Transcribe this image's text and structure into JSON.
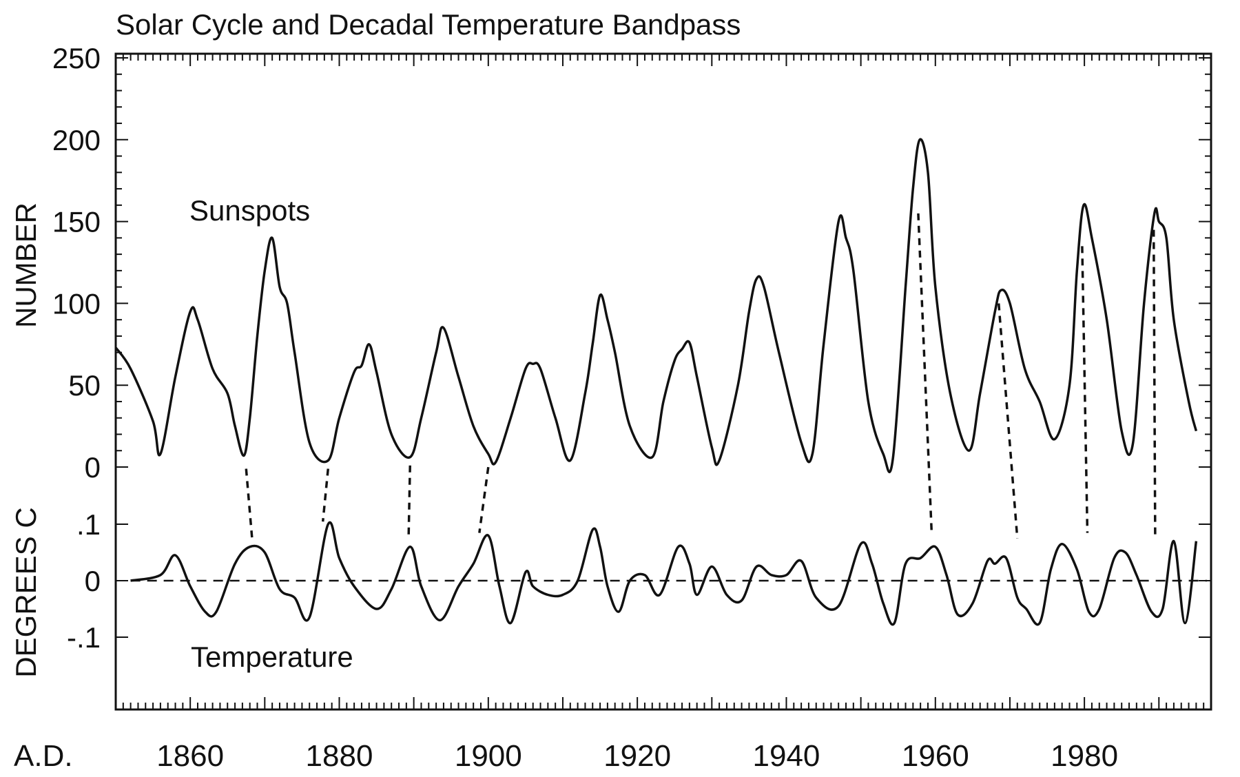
{
  "chart_data": [
    {
      "type": "line",
      "title": "Solar Cycle and Decadal Temperature Bandpass",
      "ylabel": "NUMBER",
      "xlabel": "A.D.",
      "xlim": [
        1850,
        1997
      ],
      "ylim": [
        0,
        250
      ],
      "x_ticks": [
        "1860",
        "1880",
        "1900",
        "1920",
        "1940",
        "1960",
        "1980"
      ],
      "y_ticks": [
        "0",
        "50",
        "100",
        "150",
        "200",
        "250"
      ],
      "grid": false,
      "series": [
        {
          "name": "Sunspots",
          "x": [
            1850,
            1852,
            1855,
            1856,
            1858,
            1860,
            1861,
            1863,
            1865,
            1866,
            1867.2,
            1868,
            1869,
            1870,
            1871,
            1872,
            1873,
            1874,
            1876,
            1878.5,
            1880,
            1882,
            1883,
            1884,
            1885,
            1887,
            1889.5,
            1891,
            1893,
            1894,
            1896,
            1898,
            1900,
            1901,
            1903,
            1905,
            1906,
            1907,
            1909,
            1911,
            1913,
            1914,
            1915,
            1916,
            1917,
            1919,
            1922,
            1923.5,
            1925,
            1926,
            1927,
            1928,
            1930,
            1931,
            1933.5,
            1935,
            1936,
            1937,
            1939,
            1942,
            1943.5,
            1945,
            1947,
            1948,
            1949,
            1951,
            1953,
            1954.3,
            1956,
            1957,
            1957.9,
            1959,
            1960,
            1962,
            1964.5,
            1966,
            1968,
            1968.8,
            1970,
            1972,
            1974,
            1976,
            1978,
            1979,
            1979.9,
            1981,
            1983,
            1985,
            1986.5,
            1988,
            1989.4,
            1990,
            1991,
            1992,
            1994,
            1995
          ],
          "values": [
            73,
            60,
            28,
            8,
            55,
            95,
            90,
            60,
            45,
            25,
            7,
            30,
            80,
            120,
            140,
            110,
            100,
            70,
            15,
            4,
            30,
            58,
            62,
            75,
            58,
            20,
            6,
            30,
            70,
            85,
            55,
            25,
            8,
            3,
            30,
            60,
            63,
            60,
            30,
            4,
            45,
            75,
            105,
            90,
            70,
            25,
            6,
            40,
            65,
            72,
            76,
            55,
            12,
            4,
            50,
            95,
            115,
            110,
            70,
            15,
            8,
            75,
            150,
            140,
            120,
            40,
            8,
            5,
            110,
            170,
            200,
            180,
            110,
            45,
            10,
            45,
            95,
            108,
            100,
            60,
            40,
            17,
            50,
            120,
            160,
            140,
            90,
            22,
            14,
            100,
            155,
            150,
            140,
            90,
            40,
            22
          ]
        },
        {
          "name": "Temperature",
          "x": [
            1852,
            1856,
            1858,
            1860,
            1862,
            1863.5,
            1866,
            1868,
            1870,
            1872,
            1874,
            1876,
            1878.5,
            1880,
            1882,
            1885,
            1887,
            1889.5,
            1891,
            1893.5,
            1896,
            1898,
            1900,
            1901.5,
            1903,
            1905,
            1906,
            1908,
            1910,
            1912,
            1914,
            1915,
            1916,
            1917.5,
            1919,
            1921,
            1923,
            1925.5,
            1927,
            1928,
            1930,
            1932,
            1934,
            1936,
            1938,
            1940,
            1942,
            1944,
            1947,
            1950,
            1951.5,
            1953,
            1954.5,
            1956,
            1958,
            1960,
            1961.5,
            1963,
            1965,
            1967,
            1968,
            1969.5,
            1971,
            1972.2,
            1974,
            1975.5,
            1977,
            1979,
            1980.6,
            1982,
            1984,
            1985.5,
            1987,
            1989,
            1990.5,
            1992,
            1993.5,
            1995
          ],
          "values": [
            0.0,
            0.01,
            0.045,
            -0.01,
            -0.055,
            -0.055,
            0.03,
            0.06,
            0.05,
            -0.015,
            -0.03,
            -0.065,
            0.1,
            0.04,
            -0.01,
            -0.05,
            -0.015,
            0.06,
            -0.01,
            -0.07,
            -0.01,
            0.03,
            0.08,
            -0.01,
            -0.075,
            0.015,
            -0.01,
            -0.025,
            -0.025,
            0.0,
            0.09,
            0.06,
            -0.01,
            -0.055,
            0.0,
            0.01,
            -0.025,
            0.06,
            0.03,
            -0.025,
            0.025,
            -0.025,
            -0.035,
            0.025,
            0.01,
            0.01,
            0.035,
            -0.03,
            -0.045,
            0.065,
            0.03,
            -0.04,
            -0.075,
            0.03,
            0.04,
            0.06,
            0.01,
            -0.06,
            -0.04,
            0.035,
            0.03,
            0.04,
            -0.03,
            -0.05,
            -0.075,
            0.02,
            0.065,
            0.02,
            -0.055,
            -0.05,
            0.04,
            0.05,
            0.01,
            -0.055,
            -0.05,
            0.07,
            -0.075,
            0.07
          ]
        }
      ],
      "lower_ylabel": "DEGREES C",
      "lower_ylim": [
        -0.2,
        0.15
      ],
      "lower_y_ticks": [
        "-.1",
        "0",
        ".1"
      ],
      "annotations": [
        {
          "text": "Sunspots",
          "anchor": "upper-left"
        },
        {
          "text": "Temperature",
          "anchor": "lower-left"
        }
      ],
      "connector_lines": [
        {
          "from": [
            1867.5,
            4
          ],
          "to": [
            1868.3,
            0.06
          ]
        },
        {
          "from": [
            1878.5,
            4
          ],
          "to": [
            1877.8,
            0.09
          ]
        },
        {
          "from": [
            1889.5,
            6
          ],
          "to": [
            1889.3,
            0.06
          ]
        },
        {
          "from": [
            1900,
            5
          ],
          "to": [
            1898.8,
            0.07
          ]
        },
        {
          "from": [
            1957.7,
            160
          ],
          "to": [
            1959.5,
            0.07
          ]
        },
        {
          "from": [
            1968.5,
            105
          ],
          "to": [
            1971,
            0.06
          ]
        },
        {
          "from": [
            1979.7,
            140
          ],
          "to": [
            1980.4,
            0.07
          ]
        },
        {
          "from": [
            1989.3,
            150
          ],
          "to": [
            1989.5,
            0.06
          ]
        }
      ]
    }
  ]
}
